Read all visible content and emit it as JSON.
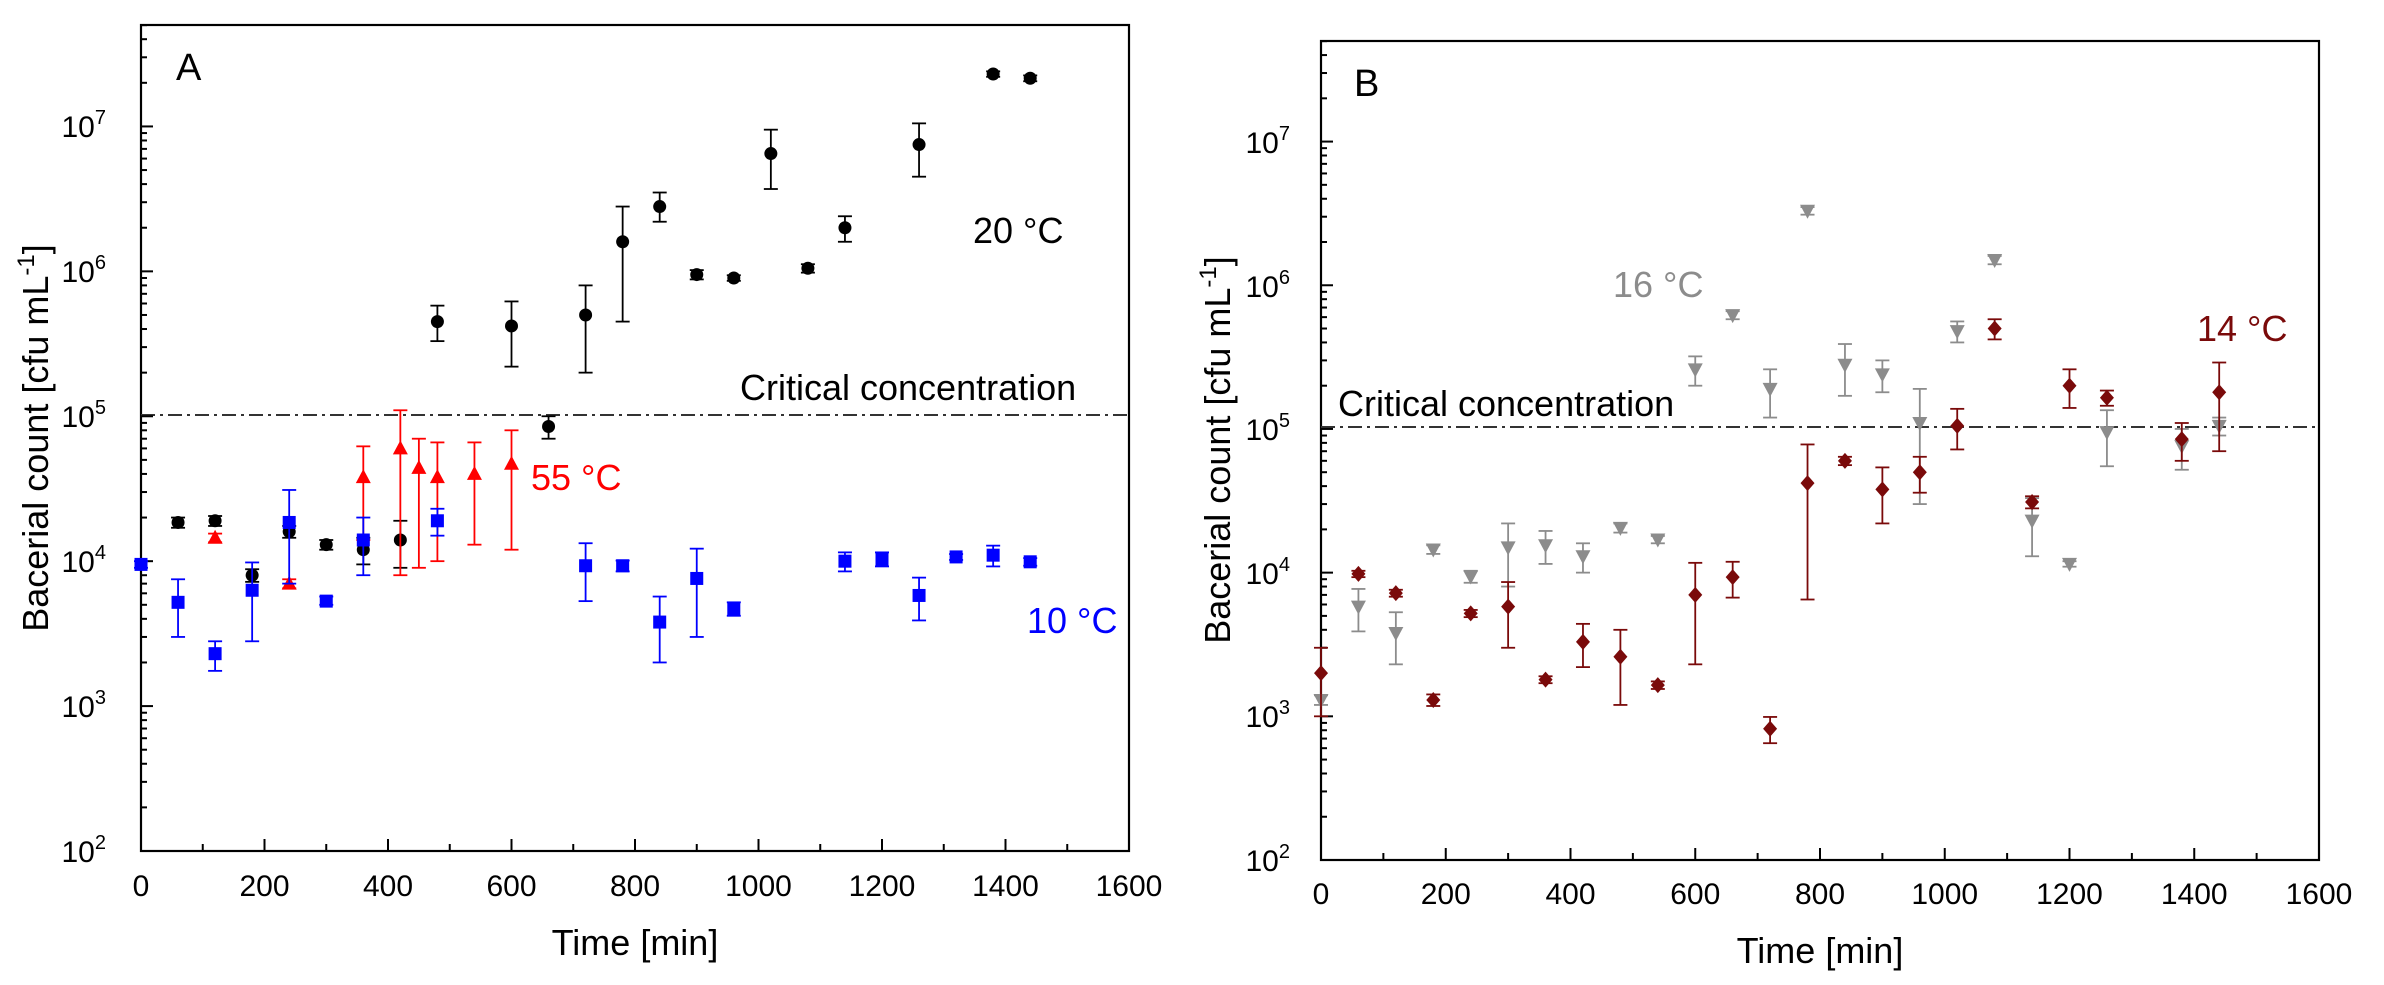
{
  "chart_data": [
    {
      "panel": "A",
      "type": "scatter",
      "xlabel": "Time [min]",
      "ylabel": "Bacerial count [cfu mL-1]",
      "ylabel_main": "Bacerial count [cfu mL",
      "ylabel_sup": "-1",
      "ylabel_tail": "]",
      "xlim": [
        0,
        1600
      ],
      "ylim_log10": [
        2,
        7.7
      ],
      "x_ticks": [
        0,
        200,
        400,
        600,
        800,
        1000,
        1200,
        1400,
        1600
      ],
      "x_tick_labels": [
        "0",
        "200",
        "400",
        "600",
        "800",
        "1000",
        "1200",
        "1400",
        "1600"
      ],
      "y_tick_exponents": [
        2,
        3,
        4,
        5,
        6,
        7
      ],
      "y_tick_base": "10",
      "y_tick_sups": [
        "2",
        "3",
        "4",
        "5",
        "6",
        "7"
      ],
      "reference_line": {
        "label": "Critical concentration",
        "y": 100000
      },
      "series": [
        {
          "name": "20 °C",
          "color": "#000000",
          "marker": "circle",
          "points": [
            {
              "x": 60,
              "y": 18500,
              "lo": 17000,
              "hi": 20000
            },
            {
              "x": 120,
              "y": 19000,
              "lo": 17500,
              "hi": 20500
            },
            {
              "x": 180,
              "y": 8000,
              "lo": 7200,
              "hi": 8800
            },
            {
              "x": 240,
              "y": 16000,
              "lo": 14500,
              "hi": 17500
            },
            {
              "x": 300,
              "y": 13000,
              "lo": 12000,
              "hi": 14000
            },
            {
              "x": 360,
              "y": 12000,
              "lo": 9500,
              "hi": 14500
            },
            {
              "x": 420,
              "y": 14000,
              "lo": 9000,
              "hi": 19000
            },
            {
              "x": 480,
              "y": 450000,
              "lo": 330000,
              "hi": 580000
            },
            {
              "x": 600,
              "y": 420000,
              "lo": 220000,
              "hi": 620000
            },
            {
              "x": 660,
              "y": 85000,
              "lo": 70000,
              "hi": 100000
            },
            {
              "x": 720,
              "y": 500000,
              "lo": 200000,
              "hi": 800000
            },
            {
              "x": 780,
              "y": 1600000,
              "lo": 450000,
              "hi": 2800000
            },
            {
              "x": 840,
              "y": 2800000,
              "lo": 2200000,
              "hi": 3500000
            },
            {
              "x": 900,
              "y": 950000,
              "lo": 880000,
              "hi": 1020000
            },
            {
              "x": 960,
              "y": 900000,
              "lo": 860000,
              "hi": 940000
            },
            {
              "x": 1020,
              "y": 6500000,
              "lo": 3700000,
              "hi": 9500000
            },
            {
              "x": 1080,
              "y": 1050000,
              "lo": 980000,
              "hi": 1120000
            },
            {
              "x": 1140,
              "y": 2000000,
              "lo": 1600000,
              "hi": 2400000
            },
            {
              "x": 1260,
              "y": 7500000,
              "lo": 4500000,
              "hi": 10500000
            },
            {
              "x": 1380,
              "y": 23000000,
              "lo": 22000000,
              "hi": 24000000
            },
            {
              "x": 1440,
              "y": 21500000,
              "lo": 20500000,
              "hi": 22500000
            }
          ]
        },
        {
          "name": "55 °C",
          "color": "#ff0000",
          "marker": "triangle",
          "points": [
            {
              "x": 120,
              "y": 14500,
              "lo": 13500,
              "hi": 15500
            },
            {
              "x": 240,
              "y": 7000,
              "lo": 6500,
              "hi": 7500
            },
            {
              "x": 360,
              "y": 38000,
              "lo": 14000,
              "hi": 62000
            },
            {
              "x": 420,
              "y": 60000,
              "lo": 8000,
              "hi": 110000
            },
            {
              "x": 450,
              "y": 44000,
              "lo": 9000,
              "hi": 70000
            },
            {
              "x": 480,
              "y": 38000,
              "lo": 10000,
              "hi": 66000
            },
            {
              "x": 540,
              "y": 40000,
              "lo": 13000,
              "hi": 66000
            },
            {
              "x": 600,
              "y": 47000,
              "lo": 12000,
              "hi": 80000
            }
          ]
        },
        {
          "name": "10 °C",
          "color": "#0000ff",
          "marker": "square",
          "points": [
            {
              "x": 0,
              "y": 9500,
              "lo": 9000,
              "hi": 10000
            },
            {
              "x": 60,
              "y": 5200,
              "lo": 3000,
              "hi": 7500
            },
            {
              "x": 120,
              "y": 2300,
              "lo": 1750,
              "hi": 2800
            },
            {
              "x": 180,
              "y": 6300,
              "lo": 2800,
              "hi": 9800
            },
            {
              "x": 240,
              "y": 18500,
              "lo": 7000,
              "hi": 31000
            },
            {
              "x": 300,
              "y": 5300,
              "lo": 5000,
              "hi": 5700
            },
            {
              "x": 360,
              "y": 14000,
              "lo": 8000,
              "hi": 20000
            },
            {
              "x": 480,
              "y": 19000,
              "lo": 15000,
              "hi": 23000
            },
            {
              "x": 720,
              "y": 9300,
              "lo": 5300,
              "hi": 13300
            },
            {
              "x": 780,
              "y": 9300,
              "lo": 8500,
              "hi": 10100
            },
            {
              "x": 840,
              "y": 3800,
              "lo": 2000,
              "hi": 5700
            },
            {
              "x": 900,
              "y": 7600,
              "lo": 3000,
              "hi": 12200
            },
            {
              "x": 960,
              "y": 4700,
              "lo": 4200,
              "hi": 5200
            },
            {
              "x": 1140,
              "y": 10000,
              "lo": 8500,
              "hi": 11500
            },
            {
              "x": 1200,
              "y": 10300,
              "lo": 9200,
              "hi": 11500
            },
            {
              "x": 1260,
              "y": 5800,
              "lo": 3900,
              "hi": 7700
            },
            {
              "x": 1320,
              "y": 10700,
              "lo": 10200,
              "hi": 11200
            },
            {
              "x": 1380,
              "y": 11000,
              "lo": 9200,
              "hi": 12800
            },
            {
              "x": 1440,
              "y": 9900,
              "lo": 9300,
              "hi": 10500
            }
          ]
        }
      ],
      "annotations": [
        {
          "text": "20 °C",
          "color": "#000000"
        },
        {
          "text": "55 °C",
          "color": "#ff0000"
        },
        {
          "text": "10 °C",
          "color": "#0000ff"
        }
      ]
    },
    {
      "panel": "B",
      "type": "scatter",
      "xlabel": "Time [min]",
      "ylabel": "Bacerial count [cfu mL-1]",
      "ylabel_main": "Bacerial count [cfu mL",
      "ylabel_sup": "-1",
      "ylabel_tail": "]",
      "xlim": [
        0,
        1600
      ],
      "ylim_log10": [
        2,
        7.7
      ],
      "x_ticks": [
        0,
        200,
        400,
        600,
        800,
        1000,
        1200,
        1400,
        1600
      ],
      "x_tick_labels": [
        "0",
        "200",
        "400",
        "600",
        "800",
        "1000",
        "1200",
        "1400",
        "1600"
      ],
      "y_tick_exponents": [
        2,
        3,
        4,
        5,
        6,
        7
      ],
      "y_tick_base": "10",
      "y_tick_sups": [
        "2",
        "3",
        "4",
        "5",
        "6",
        "7"
      ],
      "reference_line": {
        "label": "Critical concentration",
        "y": 100000
      },
      "series": [
        {
          "name": "16 °C",
          "color": "#8c8c8c",
          "marker": "triangle-down",
          "points": [
            {
              "x": 0,
              "y": 1300,
              "lo": 1200,
              "hi": 1400
            },
            {
              "x": 60,
              "y": 5800,
              "lo": 3900,
              "hi": 7700
            },
            {
              "x": 120,
              "y": 3800,
              "lo": 2300,
              "hi": 5300
            },
            {
              "x": 180,
              "y": 14500,
              "lo": 13500,
              "hi": 15500
            },
            {
              "x": 240,
              "y": 9400,
              "lo": 8500,
              "hi": 10300
            },
            {
              "x": 300,
              "y": 15000,
              "lo": 8000,
              "hi": 22000
            },
            {
              "x": 360,
              "y": 15500,
              "lo": 11500,
              "hi": 19500
            },
            {
              "x": 420,
              "y": 13000,
              "lo": 10000,
              "hi": 16000
            },
            {
              "x": 480,
              "y": 20500,
              "lo": 19000,
              "hi": 22000
            },
            {
              "x": 540,
              "y": 17000,
              "lo": 16000,
              "hi": 18000
            },
            {
              "x": 600,
              "y": 260000,
              "lo": 200000,
              "hi": 320000
            },
            {
              "x": 660,
              "y": 620000,
              "lo": 580000,
              "hi": 660000
            },
            {
              "x": 720,
              "y": 190000,
              "lo": 120000,
              "hi": 260000
            },
            {
              "x": 780,
              "y": 3300000,
              "lo": 3100000,
              "hi": 3500000
            },
            {
              "x": 840,
              "y": 280000,
              "lo": 170000,
              "hi": 390000
            },
            {
              "x": 900,
              "y": 240000,
              "lo": 180000,
              "hi": 300000
            },
            {
              "x": 960,
              "y": 110000,
              "lo": 30000,
              "hi": 190000
            },
            {
              "x": 1020,
              "y": 480000,
              "lo": 400000,
              "hi": 560000
            },
            {
              "x": 1080,
              "y": 1500000,
              "lo": 1400000,
              "hi": 1600000
            },
            {
              "x": 1140,
              "y": 23000,
              "lo": 13000,
              "hi": 33000
            },
            {
              "x": 1200,
              "y": 11500,
              "lo": 11000,
              "hi": 12000
            },
            {
              "x": 1260,
              "y": 95000,
              "lo": 55000,
              "hi": 135000
            },
            {
              "x": 1380,
              "y": 76000,
              "lo": 52000,
              "hi": 100000
            },
            {
              "x": 1440,
              "y": 105000,
              "lo": 90000,
              "hi": 120000
            }
          ]
        },
        {
          "name": "14 °C",
          "color": "#7a0a0a",
          "marker": "diamond",
          "points": [
            {
              "x": 0,
              "y": 2000,
              "lo": 1000,
              "hi": 3000
            },
            {
              "x": 60,
              "y": 9800,
              "lo": 9300,
              "hi": 10300
            },
            {
              "x": 120,
              "y": 7200,
              "lo": 6800,
              "hi": 7600
            },
            {
              "x": 180,
              "y": 1300,
              "lo": 1180,
              "hi": 1420
            },
            {
              "x": 240,
              "y": 5200,
              "lo": 4900,
              "hi": 5500
            },
            {
              "x": 300,
              "y": 5800,
              "lo": 3000,
              "hi": 8600
            },
            {
              "x": 360,
              "y": 1800,
              "lo": 1700,
              "hi": 1900
            },
            {
              "x": 420,
              "y": 3300,
              "lo": 2200,
              "hi": 4400
            },
            {
              "x": 480,
              "y": 2600,
              "lo": 1200,
              "hi": 4000
            },
            {
              "x": 540,
              "y": 1650,
              "lo": 1550,
              "hi": 1750
            },
            {
              "x": 600,
              "y": 7000,
              "lo": 2300,
              "hi": 11700
            },
            {
              "x": 660,
              "y": 9300,
              "lo": 6700,
              "hi": 11900
            },
            {
              "x": 720,
              "y": 820,
              "lo": 650,
              "hi": 990
            },
            {
              "x": 780,
              "y": 42000,
              "lo": 6500,
              "hi": 78000
            },
            {
              "x": 840,
              "y": 60000,
              "lo": 56000,
              "hi": 64000
            },
            {
              "x": 900,
              "y": 38000,
              "lo": 22000,
              "hi": 54000
            },
            {
              "x": 960,
              "y": 50000,
              "lo": 36000,
              "hi": 64000
            },
            {
              "x": 1020,
              "y": 105000,
              "lo": 72000,
              "hi": 138000
            },
            {
              "x": 1080,
              "y": 500000,
              "lo": 420000,
              "hi": 580000
            },
            {
              "x": 1140,
              "y": 31000,
              "lo": 28000,
              "hi": 34000
            },
            {
              "x": 1200,
              "y": 200000,
              "lo": 140000,
              "hi": 260000
            },
            {
              "x": 1260,
              "y": 165000,
              "lo": 145000,
              "hi": 185000
            },
            {
              "x": 1380,
              "y": 85000,
              "lo": 60000,
              "hi": 110000
            },
            {
              "x": 1440,
              "y": 180000,
              "lo": 70000,
              "hi": 290000
            }
          ]
        }
      ],
      "annotations": [
        {
          "text": "16 °C",
          "color": "#8c8c8c"
        },
        {
          "text": "14 °C",
          "color": "#7a0a0a"
        }
      ]
    }
  ]
}
